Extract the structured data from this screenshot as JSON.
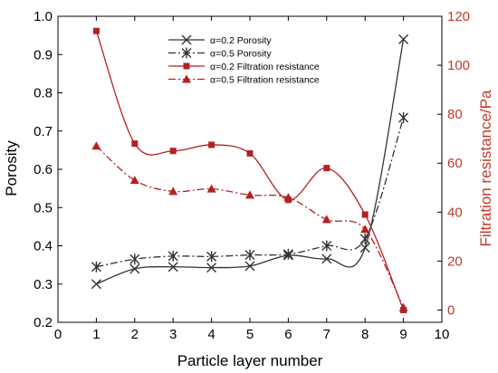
{
  "chart_data": {
    "type": "line",
    "title": "",
    "xlabel": "Particle layer number",
    "ylabel_left": "Porosity",
    "ylabel_right": "Filtration resistance/Pa",
    "xlim": [
      0,
      10
    ],
    "ylim_left": [
      0.2,
      1.0
    ],
    "ylim_right": [
      -5,
      120
    ],
    "x_ticks": [
      "0",
      "1",
      "2",
      "3",
      "4",
      "5",
      "6",
      "7",
      "8",
      "9",
      "10"
    ],
    "y_left_ticks": [
      "0.2",
      "0.3",
      "0.4",
      "0.5",
      "0.6",
      "0.7",
      "0.8",
      "0.9",
      "1.0"
    ],
    "y_right_ticks": [
      "0",
      "20",
      "40",
      "60",
      "80",
      "100",
      "120"
    ],
    "grid": false,
    "legend_position": "top-center",
    "series": [
      {
        "name": "α=0.2 Porosity",
        "axis": "left",
        "marker": "x",
        "line": "solid",
        "color": "#333333",
        "x": [
          1,
          2,
          3,
          4,
          5,
          6,
          7,
          8,
          9
        ],
        "y": [
          0.3,
          0.34,
          0.345,
          0.343,
          0.347,
          0.375,
          0.366,
          0.395,
          0.94
        ]
      },
      {
        "name": "α=0.5 Porosity",
        "axis": "left",
        "marker": "asterisk",
        "line": "dashdot",
        "color": "#333333",
        "x": [
          1,
          2,
          3,
          4,
          5,
          6,
          7,
          8,
          9
        ],
        "y": [
          0.345,
          0.365,
          0.373,
          0.372,
          0.376,
          0.378,
          0.4,
          0.418,
          0.735
        ]
      },
      {
        "name": "α=0.2 Filtration resistance",
        "axis": "right",
        "marker": "square",
        "line": "solid",
        "color": "#b22222",
        "x": [
          1,
          2,
          3,
          4,
          5,
          6,
          7,
          8,
          9
        ],
        "y": [
          114,
          68,
          65,
          67.5,
          64,
          45,
          58,
          39,
          0
        ]
      },
      {
        "name": "α=0.5 Filtration resistance",
        "axis": "right",
        "marker": "triangle",
        "line": "dashdot",
        "color": "#b22222",
        "x": [
          1,
          2,
          3,
          4,
          5,
          6,
          7,
          8,
          9
        ],
        "y": [
          67,
          53,
          48.5,
          49.5,
          47,
          46,
          37,
          33,
          1
        ]
      }
    ]
  }
}
